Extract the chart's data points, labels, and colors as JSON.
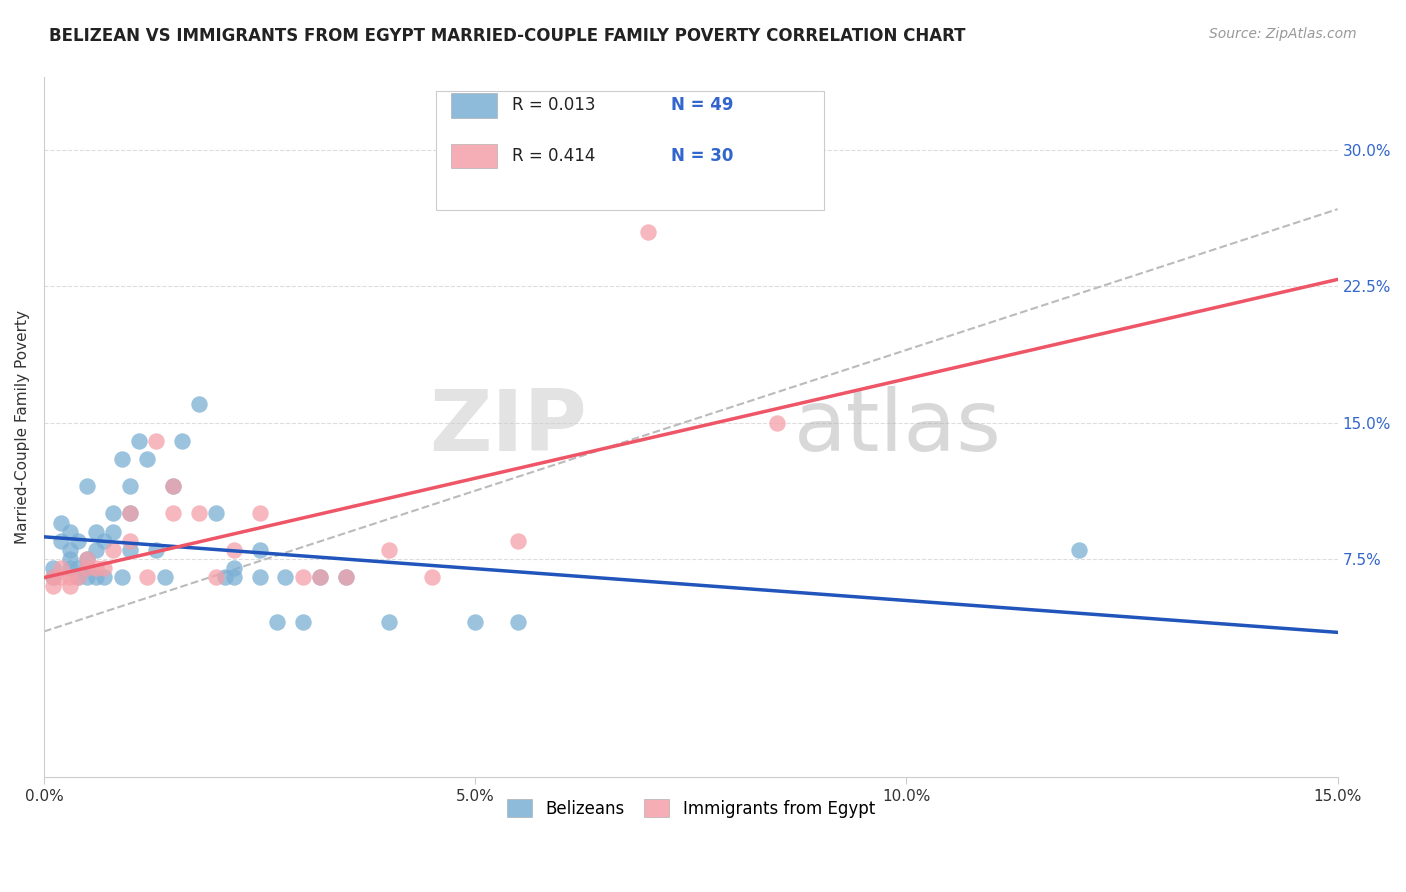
{
  "title": "BELIZEAN VS IMMIGRANTS FROM EGYPT MARRIED-COUPLE FAMILY POVERTY CORRELATION CHART",
  "source": "Source: ZipAtlas.com",
  "ylabel": "Married-Couple Family Poverty",
  "legend_labels": [
    "Belizeans",
    "Immigrants from Egypt"
  ],
  "legend_r": [
    "R = 0.013",
    "R = 0.414"
  ],
  "legend_n": [
    "N = 49",
    "N = 30"
  ],
  "blue_color": "#7BAFD4",
  "pink_color": "#F4A0A8",
  "trend_blue": "#2255BB",
  "trend_pink": "#EE5566",
  "dashed_color": "#BBBBBB",
  "x_min": 0.0,
  "x_max": 0.15,
  "y_min": -0.045,
  "y_max": 0.34,
  "right_yticks": [
    0.075,
    0.15,
    0.225,
    0.3
  ],
  "right_yticklabels": [
    "7.5%",
    "15.0%",
    "22.5%",
    "30.0%"
  ],
  "xticks": [
    0.0,
    0.05,
    0.1,
    0.15
  ],
  "xticklabels": [
    "0.0%",
    "5.0%",
    "10.0%",
    "15.0%"
  ],
  "blue_x": [
    0.001,
    0.001,
    0.002,
    0.002,
    0.003,
    0.003,
    0.003,
    0.003,
    0.004,
    0.004,
    0.004,
    0.005,
    0.005,
    0.005,
    0.005,
    0.006,
    0.006,
    0.006,
    0.007,
    0.007,
    0.008,
    0.008,
    0.009,
    0.009,
    0.01,
    0.01,
    0.01,
    0.011,
    0.012,
    0.013,
    0.014,
    0.015,
    0.016,
    0.018,
    0.02,
    0.021,
    0.022,
    0.022,
    0.025,
    0.025,
    0.027,
    0.028,
    0.03,
    0.032,
    0.035,
    0.04,
    0.05,
    0.055,
    0.12
  ],
  "blue_y": [
    0.065,
    0.07,
    0.095,
    0.085,
    0.07,
    0.075,
    0.08,
    0.09,
    0.065,
    0.07,
    0.085,
    0.065,
    0.07,
    0.075,
    0.115,
    0.065,
    0.08,
    0.09,
    0.065,
    0.085,
    0.09,
    0.1,
    0.065,
    0.13,
    0.08,
    0.1,
    0.115,
    0.14,
    0.13,
    0.08,
    0.065,
    0.115,
    0.14,
    0.16,
    0.1,
    0.065,
    0.065,
    0.07,
    0.065,
    0.08,
    0.04,
    0.065,
    0.04,
    0.065,
    0.065,
    0.04,
    0.04,
    0.04,
    0.08
  ],
  "pink_x": [
    0.001,
    0.001,
    0.002,
    0.002,
    0.003,
    0.003,
    0.004,
    0.005,
    0.005,
    0.006,
    0.007,
    0.008,
    0.01,
    0.01,
    0.012,
    0.013,
    0.015,
    0.015,
    0.018,
    0.02,
    0.022,
    0.025,
    0.03,
    0.032,
    0.035,
    0.04,
    0.045,
    0.055,
    0.07,
    0.085
  ],
  "pink_y": [
    0.06,
    0.065,
    0.065,
    0.07,
    0.06,
    0.065,
    0.065,
    0.07,
    0.075,
    0.07,
    0.07,
    0.08,
    0.085,
    0.1,
    0.065,
    0.14,
    0.1,
    0.115,
    0.1,
    0.065,
    0.08,
    0.1,
    0.065,
    0.065,
    0.065,
    0.08,
    0.065,
    0.085,
    0.255,
    0.15
  ],
  "watermark_zip": "ZIP",
  "watermark_atlas": "atlas",
  "background_color": "#FFFFFF",
  "grid_color": "#DDDDDD"
}
